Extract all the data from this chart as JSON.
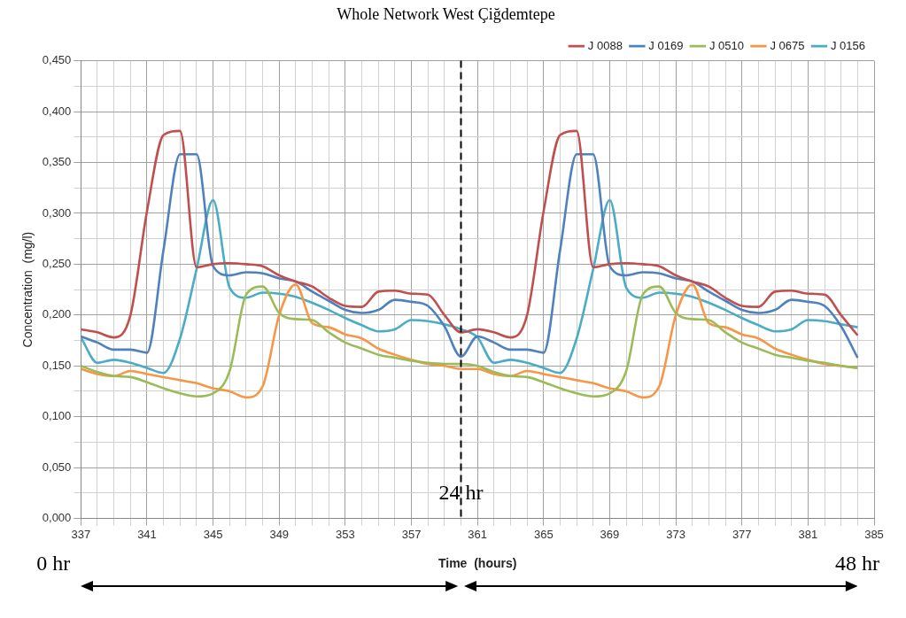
{
  "chart_data": {
    "type": "line",
    "title": "Whole Network West Çiğdemtepe",
    "xlabel": "Time  (hours)",
    "ylabel": "Concentration  (mg/l)",
    "x": [
      337,
      338,
      339,
      340,
      341,
      342,
      343,
      344,
      345,
      346,
      347,
      348,
      349,
      350,
      351,
      352,
      353,
      354,
      355,
      356,
      357,
      358,
      359,
      360,
      361,
      362,
      363,
      364,
      365,
      366,
      367,
      368,
      369,
      370,
      371,
      372,
      373,
      374,
      375,
      376,
      377,
      378,
      379,
      380,
      381,
      382,
      383,
      384
    ],
    "series": [
      {
        "name": "J 0088",
        "color": "#c0504d",
        "values": [
          0.186,
          0.183,
          0.178,
          0.2,
          0.302,
          0.377,
          0.381,
          0.247,
          0.25,
          0.251,
          0.25,
          0.248,
          0.239,
          0.233,
          0.228,
          0.217,
          0.209,
          0.208,
          0.223,
          0.224,
          0.221,
          0.22,
          0.2,
          0.183,
          0.186,
          0.183,
          0.178,
          0.2,
          0.302,
          0.377,
          0.381,
          0.247,
          0.25,
          0.251,
          0.25,
          0.248,
          0.239,
          0.233,
          0.228,
          0.217,
          0.209,
          0.208,
          0.223,
          0.224,
          0.221,
          0.22,
          0.2,
          0.18
        ]
      },
      {
        "name": "J 0169",
        "color": "#4f81bd",
        "values": [
          0.179,
          0.173,
          0.166,
          0.166,
          0.163,
          0.264,
          0.358,
          0.358,
          0.248,
          0.239,
          0.242,
          0.241,
          0.236,
          0.233,
          0.223,
          0.214,
          0.205,
          0.202,
          0.205,
          0.215,
          0.213,
          0.209,
          0.189,
          0.159,
          0.179,
          0.173,
          0.166,
          0.166,
          0.163,
          0.264,
          0.358,
          0.358,
          0.248,
          0.239,
          0.242,
          0.241,
          0.236,
          0.233,
          0.223,
          0.214,
          0.205,
          0.202,
          0.205,
          0.215,
          0.213,
          0.209,
          0.189,
          0.158
        ]
      },
      {
        "name": "J 0510",
        "color": "#9bbb59",
        "values": [
          0.15,
          0.144,
          0.14,
          0.139,
          0.134,
          0.128,
          0.123,
          0.12,
          0.123,
          0.145,
          0.22,
          0.228,
          0.202,
          0.196,
          0.195,
          0.183,
          0.173,
          0.167,
          0.161,
          0.158,
          0.155,
          0.153,
          0.152,
          0.152,
          0.15,
          0.144,
          0.14,
          0.139,
          0.134,
          0.128,
          0.123,
          0.12,
          0.123,
          0.145,
          0.22,
          0.228,
          0.202,
          0.196,
          0.195,
          0.183,
          0.173,
          0.167,
          0.161,
          0.158,
          0.155,
          0.153,
          0.15,
          0.148
        ]
      },
      {
        "name": "J 0675",
        "color": "#f79646",
        "values": [
          0.147,
          0.142,
          0.14,
          0.145,
          0.142,
          0.139,
          0.136,
          0.133,
          0.128,
          0.125,
          0.119,
          0.13,
          0.2,
          0.23,
          0.192,
          0.188,
          0.181,
          0.177,
          0.167,
          0.161,
          0.156,
          0.152,
          0.15,
          0.147,
          0.147,
          0.142,
          0.14,
          0.145,
          0.142,
          0.139,
          0.136,
          0.133,
          0.128,
          0.125,
          0.119,
          0.13,
          0.2,
          0.23,
          0.192,
          0.188,
          0.181,
          0.177,
          0.167,
          0.161,
          0.156,
          0.152,
          0.15,
          0.148
        ]
      },
      {
        "name": "J 0156",
        "color": "#4bacc6",
        "values": [
          0.178,
          0.153,
          0.156,
          0.153,
          0.148,
          0.143,
          0.177,
          0.245,
          0.313,
          0.227,
          0.217,
          0.222,
          0.221,
          0.218,
          0.212,
          0.205,
          0.197,
          0.19,
          0.184,
          0.186,
          0.195,
          0.194,
          0.191,
          0.186,
          0.178,
          0.153,
          0.156,
          0.153,
          0.148,
          0.143,
          0.177,
          0.245,
          0.313,
          0.227,
          0.217,
          0.222,
          0.221,
          0.218,
          0.212,
          0.205,
          0.197,
          0.19,
          0.184,
          0.186,
          0.195,
          0.194,
          0.191,
          0.188
        ]
      }
    ],
    "xlim": [
      337,
      385
    ],
    "xticks": [
      337,
      {
        "value": 338,
        "label": null
      },
      {
        "value": 339,
        "label": null
      },
      {
        "value": 340,
        "label": null
      },
      341,
      {
        "value": 342,
        "label": null
      },
      {
        "value": 343,
        "label": null
      },
      {
        "value": 344,
        "label": null
      },
      345,
      {
        "value": 346,
        "label": null
      },
      {
        "value": 347,
        "label": null
      },
      {
        "value": 348,
        "label": null
      },
      349,
      {
        "value": 350,
        "label": null
      },
      {
        "value": 351,
        "label": null
      },
      {
        "value": 352,
        "label": null
      },
      353,
      {
        "value": 354,
        "label": null
      },
      {
        "value": 355,
        "label": null
      },
      {
        "value": 356,
        "label": null
      },
      357,
      {
        "value": 358,
        "label": null
      },
      {
        "value": 359,
        "label": null
      },
      {
        "value": 360,
        "label": null
      },
      361,
      {
        "value": 362,
        "label": null
      },
      {
        "value": 363,
        "label": null
      },
      {
        "value": 364,
        "label": null
      },
      365,
      {
        "value": 366,
        "label": null
      },
      {
        "value": 367,
        "label": null
      },
      {
        "value": 368,
        "label": null
      },
      369,
      {
        "value": 370,
        "label": null
      },
      {
        "value": 371,
        "label": null
      },
      {
        "value": 372,
        "label": null
      },
      373,
      {
        "value": 374,
        "label": null
      },
      {
        "value": 375,
        "label": null
      },
      {
        "value": 376,
        "label": null
      },
      377,
      {
        "value": 378,
        "label": null
      },
      {
        "value": 379,
        "label": null
      },
      {
        "value": 380,
        "label": null
      },
      381,
      {
        "value": 382,
        "label": null
      },
      {
        "value": 383,
        "label": null
      },
      {
        "value": 384,
        "label": null
      },
      385
    ],
    "ylim": [
      0,
      0.45
    ],
    "yticks": [
      {
        "value": 0,
        "label": "0,000"
      },
      {
        "value": 0.025,
        "label": null
      },
      {
        "value": 0.05,
        "label": "0,050"
      },
      {
        "value": 0.075,
        "label": null
      },
      {
        "value": 0.1,
        "label": "0,100"
      },
      {
        "value": 0.125,
        "label": null
      },
      {
        "value": 0.15,
        "label": "0,150"
      },
      {
        "value": 0.175,
        "label": null
      },
      {
        "value": 0.2,
        "label": "0,200"
      },
      {
        "value": 0.225,
        "label": null
      },
      {
        "value": 0.25,
        "label": "0,250"
      },
      {
        "value": 0.275,
        "label": null
      },
      {
        "value": 0.3,
        "label": "0,300"
      },
      {
        "value": 0.325,
        "label": null
      },
      {
        "value": 0.35,
        "label": "0,350"
      },
      {
        "value": 0.375,
        "label": null
      },
      {
        "value": 0.4,
        "label": "0,400"
      },
      {
        "value": 0.425,
        "label": null
      },
      {
        "value": 0.45,
        "label": "0,450"
      }
    ],
    "ref_lines": [
      {
        "axis": "x",
        "value": 360,
        "label": "24 hr",
        "color": "#000000",
        "line_style": "dashed"
      }
    ],
    "annotations": [
      "0 hr",
      "48 hr"
    ],
    "grid": true,
    "legend": "top right",
    "marker": "none",
    "line_style": "solid"
  }
}
